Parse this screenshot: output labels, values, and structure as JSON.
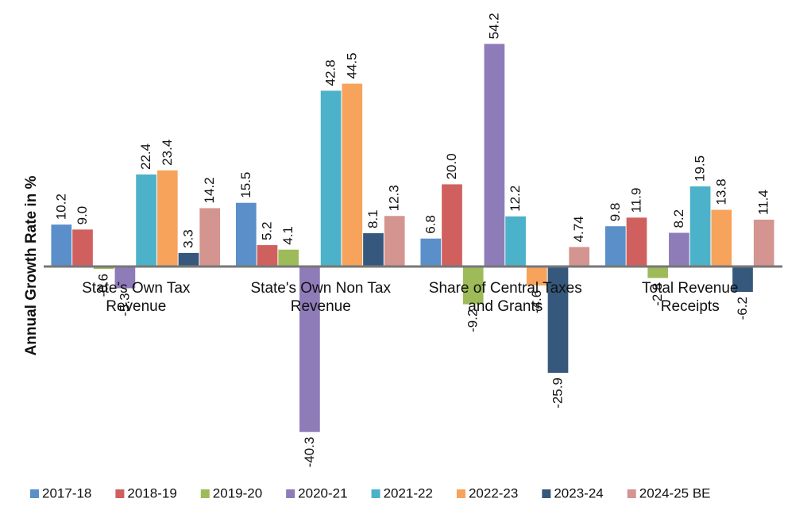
{
  "chart_data": {
    "type": "bar",
    "ylabel": "Annual Growth Rate in %",
    "categories": [
      "State's Own Tax Revenue",
      "State's Own Non Tax Revenue",
      "Share of Central Taxes and Grants",
      "Total Revenue Receipts"
    ],
    "series": [
      {
        "name": "2017-18",
        "color": "#5b8fc9",
        "values": [
          10.2,
          15.5,
          6.8,
          9.8
        ],
        "value_labels": [
          "10.2",
          "15.5",
          "6.8",
          "9.8"
        ]
      },
      {
        "name": "2018-19",
        "color": "#d0605e",
        "values": [
          9.0,
          5.2,
          20.0,
          11.9
        ],
        "value_labels": [
          "9.0",
          "5.2",
          "20.0",
          "11.9"
        ]
      },
      {
        "name": "2019-20",
        "color": "#9dbb59",
        "values": [
          -0.6,
          4.1,
          -9.2,
          -2.8
        ],
        "value_labels": [
          "-0.6",
          "4.1",
          "-9.2",
          "-2.8"
        ]
      },
      {
        "name": "2020-21",
        "color": "#8e7cb8",
        "values": [
          -5.3,
          -40.3,
          54.2,
          8.2
        ],
        "value_labels": [
          "-5.3",
          "-40.3",
          "54.2",
          "8.2"
        ]
      },
      {
        "name": "2021-22",
        "color": "#4bb2c9",
        "values": [
          22.4,
          42.8,
          12.2,
          19.5
        ],
        "value_labels": [
          "22.4",
          "42.8",
          "12.2",
          "19.5"
        ]
      },
      {
        "name": "2022-23",
        "color": "#f7a35c",
        "values": [
          23.4,
          44.5,
          -4.6,
          13.8
        ],
        "value_labels": [
          "23.4",
          "44.5",
          "-4.6",
          "13.8"
        ]
      },
      {
        "name": "2023-24",
        "color": "#35587c",
        "values": [
          3.3,
          8.1,
          -25.9,
          -6.2
        ],
        "value_labels": [
          "3.3",
          "8.1",
          "-25.9",
          "-6.2"
        ]
      },
      {
        "name": "2024-25 BE",
        "color": "#d4948f",
        "values": [
          14.2,
          12.3,
          4.74,
          11.4
        ],
        "value_labels": [
          "14.2",
          "12.3",
          "4.74",
          "11.4"
        ]
      }
    ],
    "ylim": [
      -45,
      56
    ],
    "legend": "bottom"
  }
}
